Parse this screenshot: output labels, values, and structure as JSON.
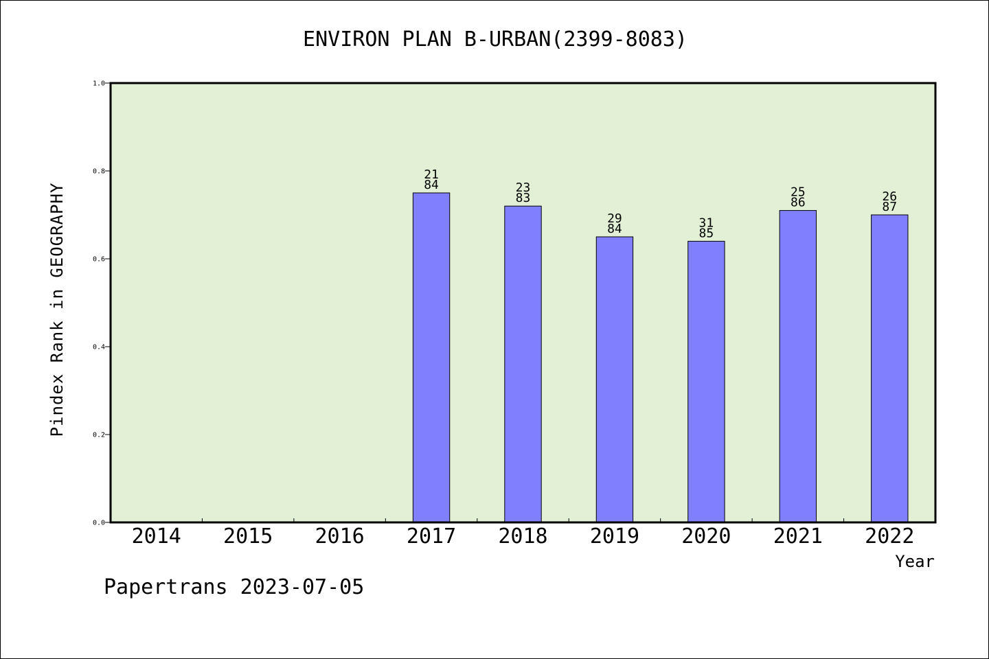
{
  "chart_data": {
    "type": "bar",
    "title": "ENVIRON PLAN B-URBAN(2399-8083)",
    "xlabel": "Year",
    "ylabel": "Pindex Rank in GEOGRAPHY",
    "categories": [
      "2014",
      "2015",
      "2016",
      "2017",
      "2018",
      "2019",
      "2020",
      "2021",
      "2022"
    ],
    "values": [
      null,
      null,
      null,
      0.75,
      0.72,
      0.65,
      0.64,
      0.71,
      0.7
    ],
    "label_top": [
      "",
      "",
      "",
      "21",
      "23",
      "29",
      "31",
      "25",
      "26"
    ],
    "label_bottom": [
      "",
      "",
      "",
      "84",
      "83",
      "84",
      "85",
      "86",
      "87"
    ],
    "ylim": [
      0,
      1.0
    ],
    "yticks": [
      "0.0",
      "0.2",
      "0.4",
      "0.6",
      "0.8",
      "1.0"
    ],
    "grid": false,
    "legend": "none",
    "colors": {
      "plot_background": "#e2f0d6",
      "bar_fill": "#8080ff",
      "axis": "#000000"
    }
  },
  "footer": "Papertrans 2023-07-05"
}
